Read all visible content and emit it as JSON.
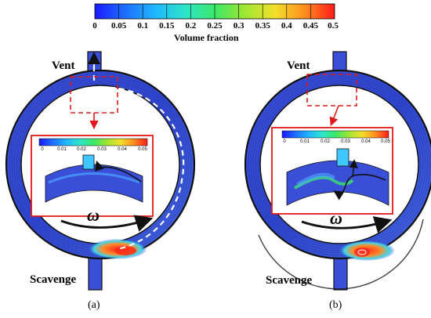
{
  "colorbar": {
    "title": "Volume fraction",
    "ticks": [
      "0",
      "0.05",
      "0.1",
      "0.15",
      "0.2",
      "0.25",
      "0.3",
      "0.35",
      "0.4",
      "0.45",
      "0.5"
    ]
  },
  "inset_colorbar": {
    "ticks": [
      "0",
      "0.01",
      "0.02",
      "0.03",
      "0.04",
      "0.05"
    ]
  },
  "panel_a": {
    "vent_label": "Vent",
    "scavenge_label": "Scavenge",
    "caption": "(a)",
    "omega": "ω"
  },
  "panel_b": {
    "vent_label": "Vent",
    "scavenge_label": "Scavenge",
    "caption": "(b)",
    "omega": "ω"
  }
}
